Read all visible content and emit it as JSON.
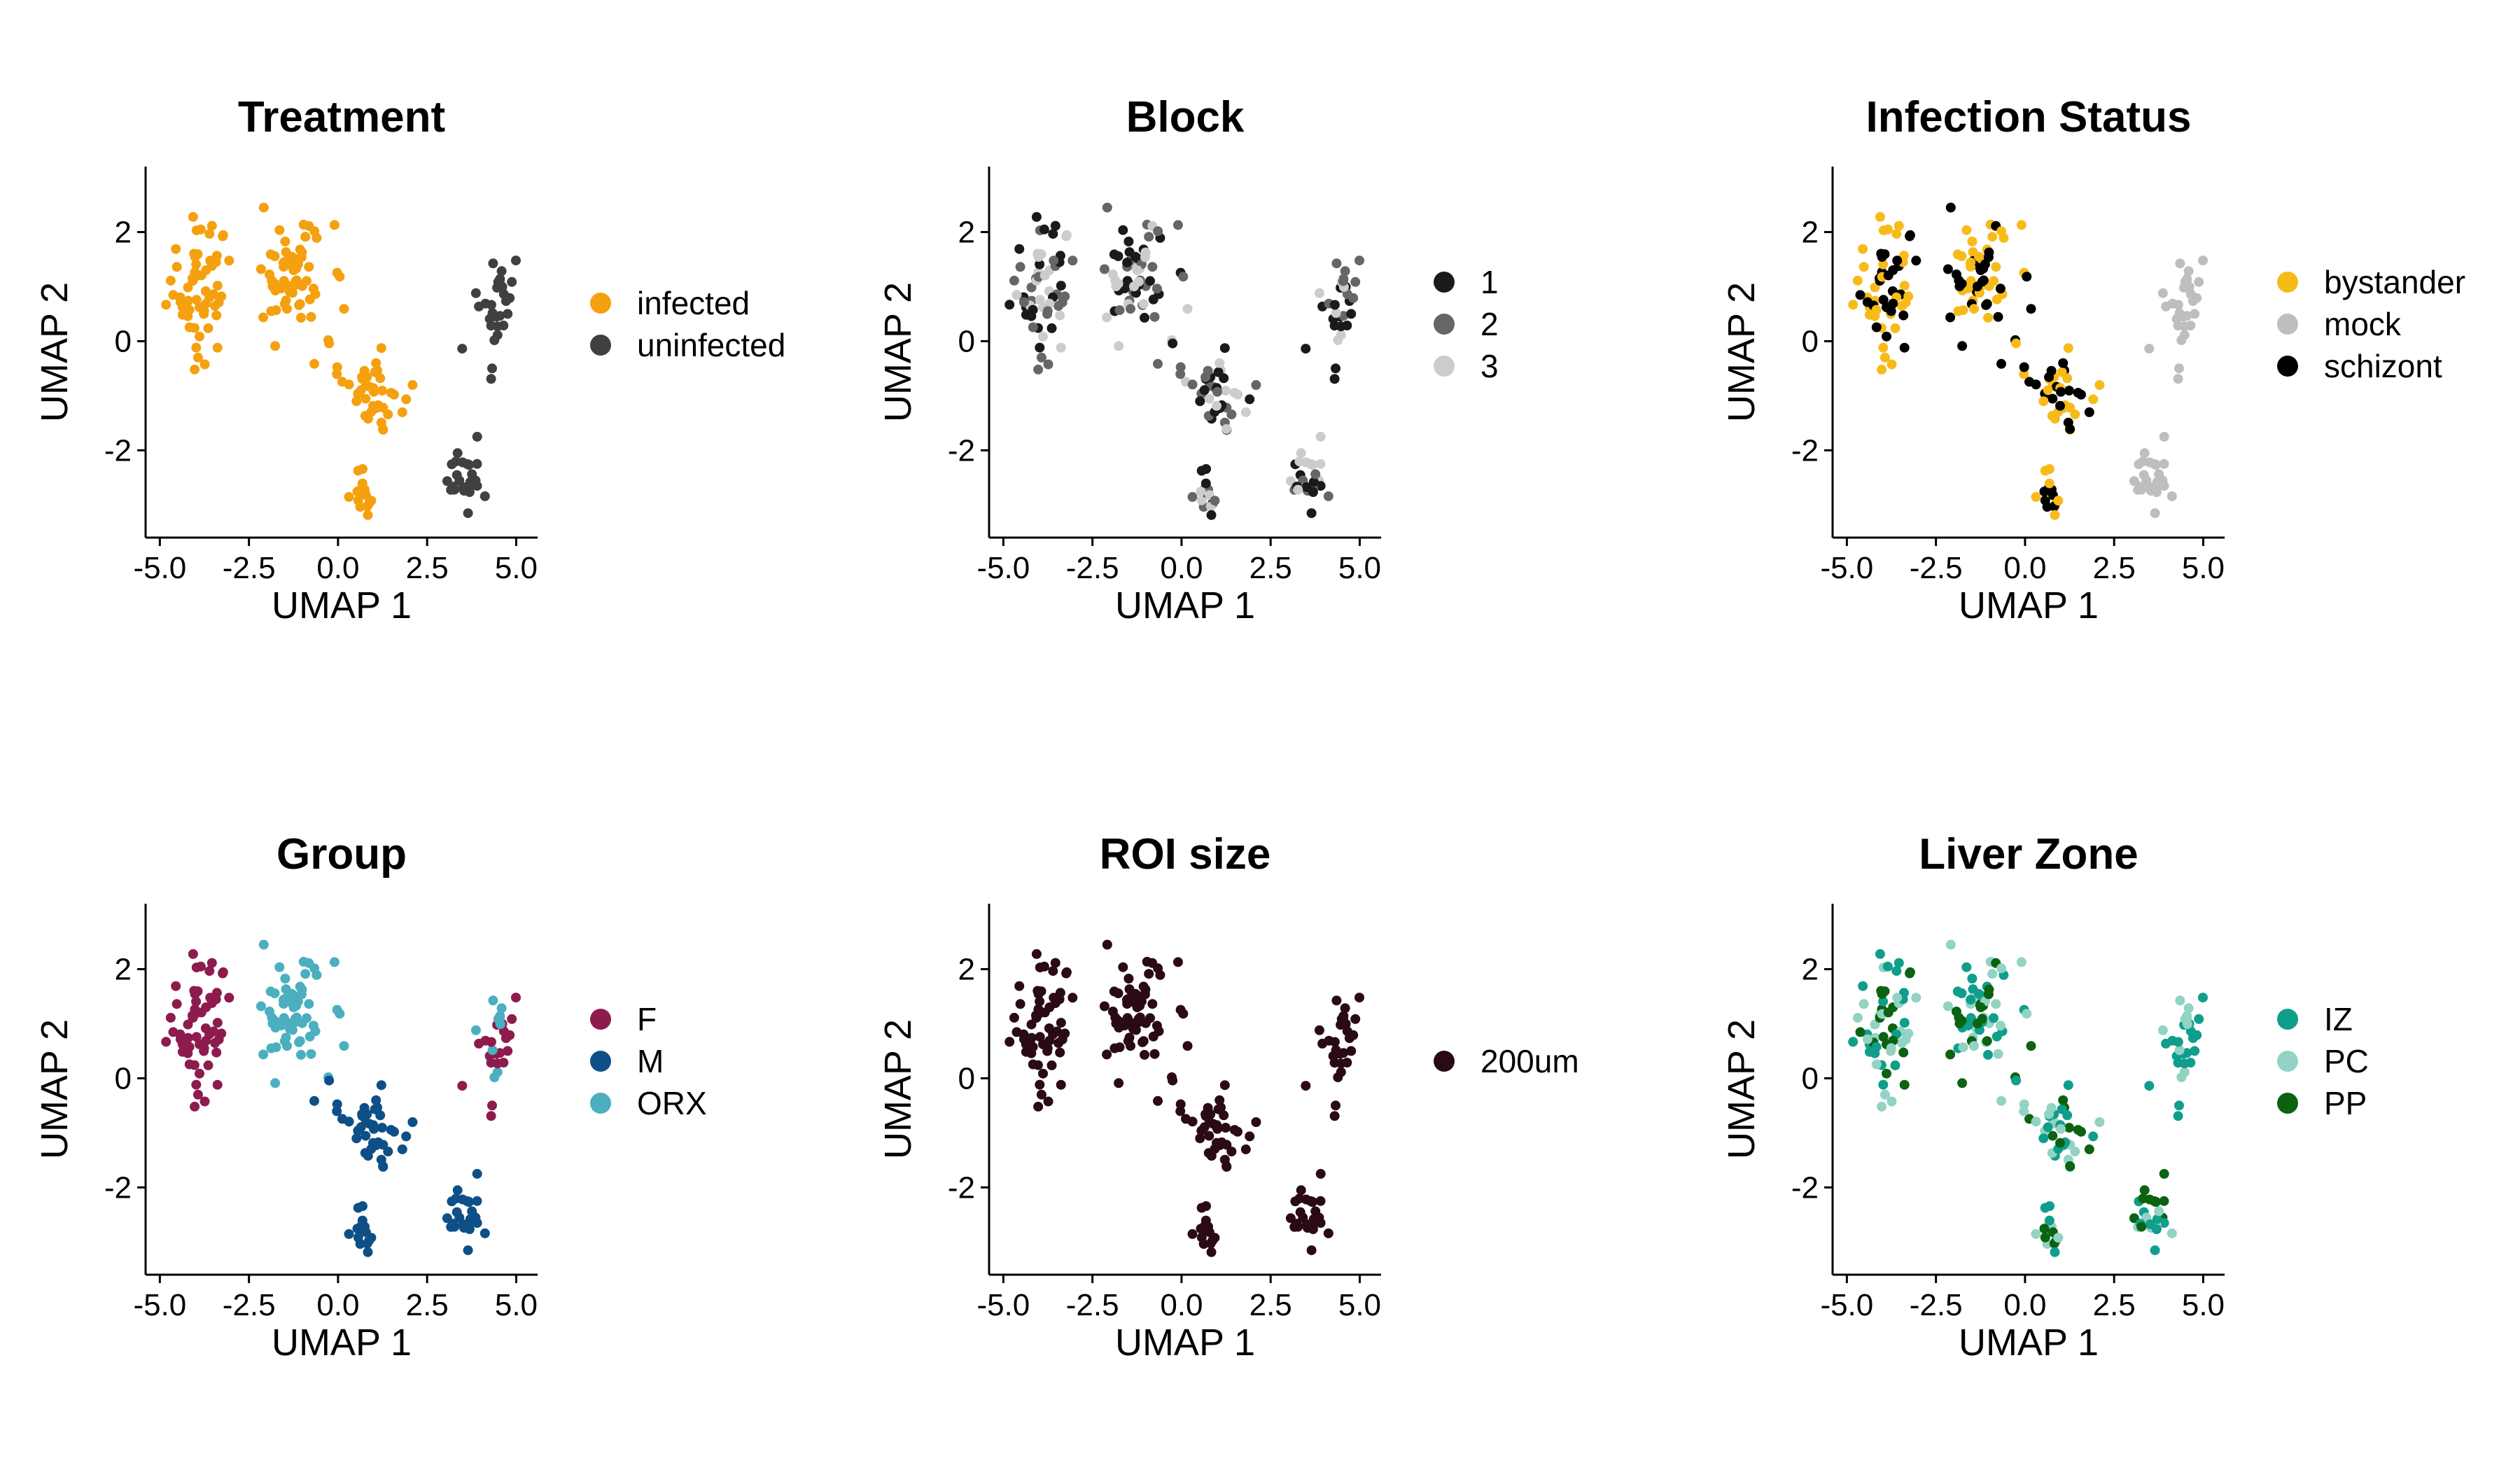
{
  "chart_data": [
    {
      "type": "scatter",
      "title": "Treatment",
      "xlabel": "UMAP 1",
      "ylabel": "UMAP 2",
      "xlim": [
        -5.4,
        5.6
      ],
      "ylim": [
        -3.6,
        3.2
      ],
      "xticks": [
        "-5.0",
        "-2.5",
        "0.0",
        "2.5",
        "5.0"
      ],
      "yticks": [
        "-2",
        "0",
        "2"
      ],
      "legend": "right",
      "series": [
        {
          "name": "infected",
          "color": "#F5A00F",
          "regions": [
            "A",
            "B",
            "C",
            "D"
          ]
        },
        {
          "name": "uninfected",
          "color": "#404040",
          "regions": [
            "E",
            "F"
          ]
        }
      ]
    },
    {
      "type": "scatter",
      "title": "Block",
      "xlabel": "UMAP 1",
      "ylabel": "UMAP 2",
      "xlim": [
        -5.4,
        5.6
      ],
      "ylim": [
        -3.6,
        3.2
      ],
      "xticks": [
        "-5.0",
        "-2.5",
        "0.0",
        "2.5",
        "5.0"
      ],
      "yticks": [
        "-2",
        "0",
        "2"
      ],
      "legend": "right",
      "series": [
        {
          "name": "1",
          "color": "#1A1A1A",
          "regions": [
            "A",
            "B",
            "C",
            "D",
            "E",
            "F"
          ]
        },
        {
          "name": "2",
          "color": "#666666",
          "regions": [
            "A",
            "B",
            "C",
            "D",
            "E",
            "F"
          ]
        },
        {
          "name": "3",
          "color": "#CCCCCC",
          "regions": [
            "A",
            "B",
            "C",
            "D",
            "E",
            "F"
          ]
        }
      ]
    },
    {
      "type": "scatter",
      "title": "Infection Status",
      "xlabel": "UMAP 1",
      "ylabel": "UMAP 2",
      "xlim": [
        -5.4,
        5.6
      ],
      "ylim": [
        -3.6,
        3.2
      ],
      "xticks": [
        "-5.0",
        "-2.5",
        "0.0",
        "2.5",
        "5.0"
      ],
      "yticks": [
        "-2",
        "0",
        "2"
      ],
      "legend": "right",
      "series": [
        {
          "name": "bystander",
          "color": "#F7BB19",
          "regions": [
            "A",
            "B",
            "C",
            "D"
          ]
        },
        {
          "name": "mock",
          "color": "#BEBEBE",
          "regions": [
            "E",
            "F"
          ]
        },
        {
          "name": "schizont",
          "color": "#000000",
          "regions": [
            "A",
            "B",
            "C",
            "D"
          ]
        }
      ]
    },
    {
      "type": "scatter",
      "title": "Group",
      "xlabel": "UMAP 1",
      "ylabel": "UMAP 2",
      "xlim": [
        -5.4,
        5.6
      ],
      "ylim": [
        -3.6,
        3.2
      ],
      "xticks": [
        "-5.0",
        "-2.5",
        "0.0",
        "2.5",
        "5.0"
      ],
      "yticks": [
        "-2",
        "0",
        "2"
      ],
      "legend": "right",
      "series": [
        {
          "name": "F",
          "color": "#8E1B4E",
          "regions": [
            "A",
            "F"
          ]
        },
        {
          "name": "M",
          "color": "#0E4F87",
          "regions": [
            "C",
            "D",
            "E"
          ]
        },
        {
          "name": "ORX",
          "color": "#4BAFC0",
          "regions": [
            "B",
            "F"
          ]
        }
      ]
    },
    {
      "type": "scatter",
      "title": "ROI size",
      "xlabel": "UMAP 1",
      "ylabel": "UMAP 2",
      "xlim": [
        -5.4,
        5.6
      ],
      "ylim": [
        -3.6,
        3.2
      ],
      "xticks": [
        "-5.0",
        "-2.5",
        "0.0",
        "2.5",
        "5.0"
      ],
      "yticks": [
        "-2",
        "0",
        "2"
      ],
      "legend": "right",
      "series": [
        {
          "name": "200um",
          "color": "#2A0A14",
          "regions": [
            "A",
            "B",
            "C",
            "D",
            "E",
            "F"
          ]
        }
      ]
    },
    {
      "type": "scatter",
      "title": "Liver Zone",
      "xlabel": "UMAP 1",
      "ylabel": "UMAP 2",
      "xlim": [
        -5.4,
        5.6
      ],
      "ylim": [
        -3.6,
        3.2
      ],
      "xticks": [
        "-5.0",
        "-2.5",
        "0.0",
        "2.5",
        "5.0"
      ],
      "yticks": [
        "-2",
        "0",
        "2"
      ],
      "legend": "right",
      "series": [
        {
          "name": "IZ",
          "color": "#109E8C",
          "regions": [
            "A",
            "B",
            "C",
            "D",
            "E",
            "F"
          ]
        },
        {
          "name": "PC",
          "color": "#92D3C3",
          "regions": [
            "A",
            "B",
            "C",
            "D",
            "E",
            "F"
          ]
        },
        {
          "name": "PP",
          "color": "#0B6312",
          "regions": [
            "A",
            "B",
            "C",
            "D",
            "E"
          ]
        }
      ]
    }
  ]
}
